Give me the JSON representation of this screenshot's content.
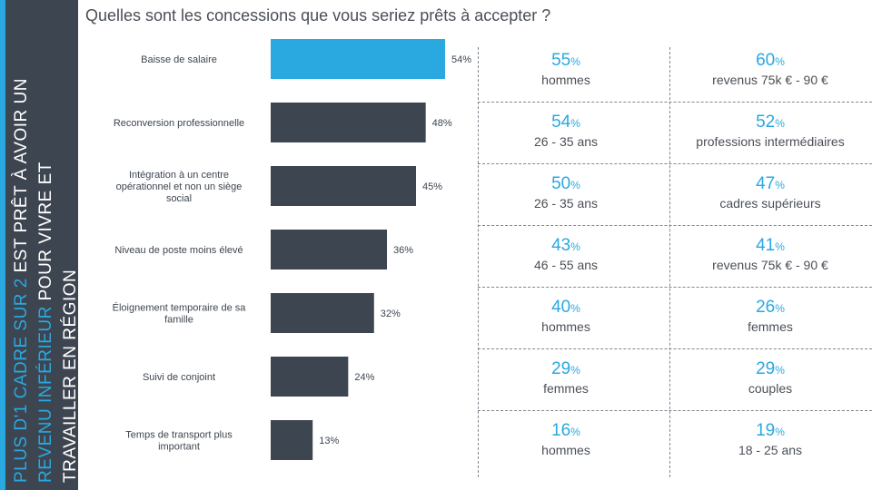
{
  "banner": {
    "p1": "PLUS D'1 CADRE SUR 2",
    "p2": " EST PRÊT À AVOIR UN ",
    "p3": "REVENU INFÉRIEUR",
    "p4": " POUR VIVRE ET TRAVAILLER EN RÉGION"
  },
  "title": "Quelles sont les concessions que vous seriez prêts à accepter ?",
  "colors": {
    "accent": "#2aa8e0",
    "bar": "#3d4550"
  },
  "chart_data": {
    "type": "bar",
    "orientation": "horizontal",
    "title": "",
    "categories": [
      "Baisse de salaire",
      "Reconversion professionnelle",
      "Intégration à un centre opérationnel et non un siège social",
      "Niveau de poste moins élevé",
      "Éloignement temporaire de sa famille",
      "Suivi de conjoint",
      "Temps de transport plus important"
    ],
    "category_lines": [
      [
        "Baisse de salaire"
      ],
      [
        "Reconversion professionnelle"
      ],
      [
        "Intégration à un centre",
        "opérationnel et non un siège",
        "social"
      ],
      [
        "Niveau de poste moins élevé"
      ],
      [
        "Éloignement temporaire de sa",
        "famille"
      ],
      [
        "Suivi de conjoint"
      ],
      [
        "Temps de transport plus",
        "important"
      ]
    ],
    "values": [
      54,
      48,
      45,
      36,
      32,
      24,
      13
    ],
    "value_labels": [
      "54%",
      "48%",
      "45%",
      "36%",
      "32%",
      "24%",
      "13%"
    ],
    "highlight_index": 0,
    "xlim": [
      0,
      54
    ],
    "grid": false
  },
  "table": {
    "rows": [
      [
        {
          "pct": "55",
          "sym": "%",
          "label": "hommes"
        },
        {
          "pct": "60",
          "sym": "%",
          "label": "revenus 75k € - 90 €"
        }
      ],
      [
        {
          "pct": "54",
          "sym": "%",
          "label": "26 - 35 ans"
        },
        {
          "pct": "52",
          "sym": "%",
          "label": "professions intermédiaires"
        }
      ],
      [
        {
          "pct": "50",
          "sym": "%",
          "label": "26 - 35 ans"
        },
        {
          "pct": "47",
          "sym": "%",
          "label": "cadres supérieurs"
        }
      ],
      [
        {
          "pct": "43",
          "sym": "%",
          "label": "46 - 55 ans"
        },
        {
          "pct": "41",
          "sym": "%",
          "label": "revenus 75k € - 90 €"
        }
      ],
      [
        {
          "pct": "40",
          "sym": "%",
          "label": "hommes"
        },
        {
          "pct": "26",
          "sym": "%",
          "label": "femmes"
        }
      ],
      [
        {
          "pct": "29",
          "sym": "%",
          "label": "femmes"
        },
        {
          "pct": "29",
          "sym": "%",
          "label": "couples"
        }
      ],
      [
        {
          "pct": "16",
          "sym": "%",
          "label": "hommes"
        },
        {
          "pct": "19",
          "sym": "%",
          "label": "18 - 25 ans"
        }
      ]
    ]
  }
}
